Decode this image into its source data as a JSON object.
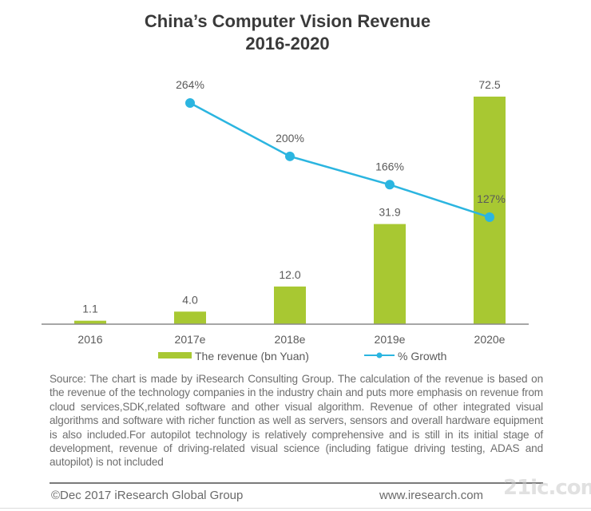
{
  "chart_data": {
    "type": "bar",
    "title": "China’s Computer Vision Revenue",
    "subtitle": "2016-2020",
    "categories": [
      "2016",
      "2017e",
      "2018e",
      "2019e",
      "2020e"
    ],
    "series": [
      {
        "name": "The revenue (bn Yuan)",
        "type": "bar",
        "color": "#a8c832",
        "values": [
          1.1,
          4.0,
          12.0,
          31.9,
          72.5
        ],
        "labels": [
          "1.1",
          "4.0",
          "12.0",
          "31.9",
          "72.5"
        ]
      },
      {
        "name": "% Growth",
        "type": "line",
        "color": "#2bb5e0",
        "values": [
          null,
          264,
          200,
          166,
          127
        ],
        "labels": [
          "",
          "264%",
          "200%",
          "166%",
          "127%"
        ]
      }
    ],
    "xlabel": "",
    "ylabel": "",
    "ylim": [
      0,
      75
    ],
    "grid": false,
    "legend_position": "bottom"
  },
  "source_note": "Source: The chart is made by iResearch Consulting Group. The calculation of the revenue is based on the revenue of  the technology companies  in the industry chain and puts more emphasis on revenue from cloud services,SDK,related software and other visual algorithm. Revenue of  other integrated visual algorithms and software with richer function as well as servers, sensors and overall hardware equipment is also included.For autopilot technology is relatively comprehensive and is still in  its initial  stage of development,  revenue of driving-related visual science (including fatigue driving testing, ADAS and autopilot) is not included",
  "footer": {
    "copyright": "©Dec 2017  iResearch Global Group",
    "website": "www.iresearch.com",
    "watermark": "21ic.com"
  }
}
